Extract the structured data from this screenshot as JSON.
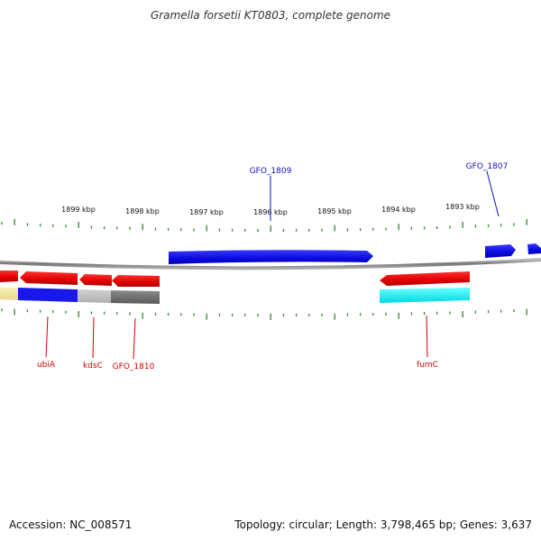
{
  "title": "Gramella forsetii KT0803, complete genome",
  "footer": {
    "accession": "Accession: NC_008571",
    "summary": "Topology: circular; Length: 3,798,465 bp; Genes: 3,637"
  },
  "colors": {
    "tick": "#2a8a2a",
    "backbone": "#888888",
    "forward_gene": "#1010e0",
    "reverse_gene": "#e01010",
    "label_forward": "#1010c0",
    "label_reverse": "#d00000"
  },
  "scale_labels": [
    "1899 kbp",
    "1898 kbp",
    "1897 kbp",
    "1896 kbp",
    "1895 kbp",
    "1894 kbp",
    "1893 kbp"
  ],
  "gene_labels": [
    "GFO_1809",
    "GFO_1807",
    "ubiA",
    "kdsC",
    "GFO_1810",
    "fumC"
  ]
}
